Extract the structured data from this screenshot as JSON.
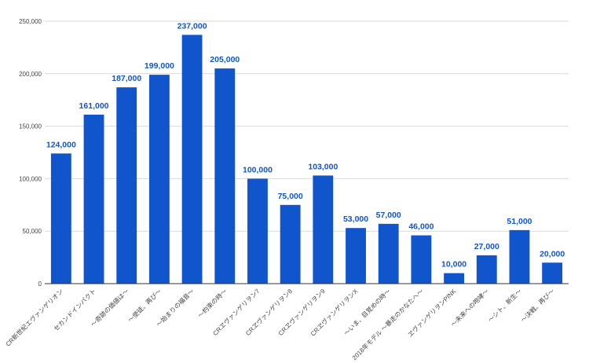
{
  "chart_data": {
    "type": "bar",
    "title": "",
    "xlabel": "",
    "ylabel": "",
    "ylim": [
      0,
      250000
    ],
    "yticks": [
      "0",
      "50,000",
      "100,000",
      "150,000",
      "200,000",
      "250,000"
    ],
    "grid": true,
    "legend": "none",
    "bar_color": "#1155cc",
    "categories": [
      "CR新世紀エヴァンゲリオン",
      "セカンドインパクト",
      "～奇跡の価値は～",
      "～使徒、再び～",
      "～始まりの福音～",
      "～約束の時～",
      "CRヱヴァンゲリヲン7",
      "CRヱヴァンゲリヲン8",
      "CRヱヴァンゲリヲン9",
      "CRヱヴァンゲリヲンX",
      "～いま、目覚めの時～",
      "2018年モデル ～暴走のかなたへ～",
      "ヱヴァンゲリヲンPINK",
      "～未来への咆哮～",
      "～シト、新生～",
      "～決戦、再び～"
    ],
    "values": [
      124000,
      161000,
      187000,
      199000,
      237000,
      205000,
      100000,
      75000,
      103000,
      53000,
      57000,
      46000,
      10000,
      27000,
      51000,
      20000
    ],
    "data_labels": [
      "124,000",
      "161,000",
      "187,000",
      "199,000",
      "237,000",
      "205,000",
      "100,000",
      "75,000",
      "103,000",
      "53,000",
      "57,000",
      "46,000",
      "10,000",
      "27,000",
      "51,000",
      "20,000"
    ]
  }
}
